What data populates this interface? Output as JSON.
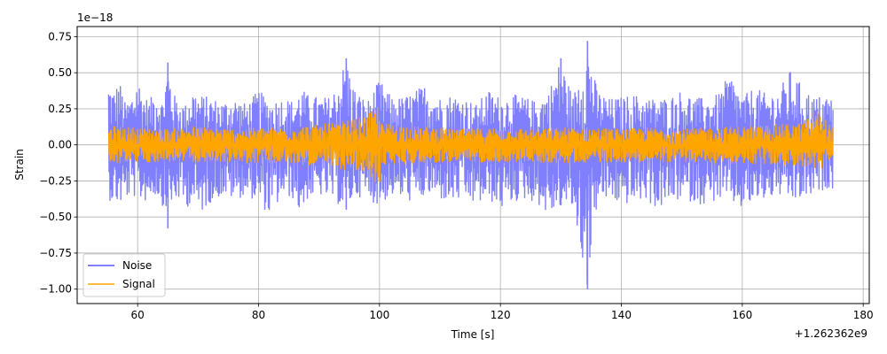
{
  "chart_data": {
    "type": "line",
    "xlabel": "Time [s]",
    "ylabel": "Strain",
    "y_scale_label": "1e−18",
    "x_offset_label": "+1.262362e9",
    "xlim": [
      50,
      181
    ],
    "ylim": [
      -1.1,
      0.82
    ],
    "x_ticks": [
      60,
      80,
      100,
      120,
      140,
      160,
      180
    ],
    "x_tick_labels": [
      "60",
      "80",
      "100",
      "120",
      "140",
      "160",
      "180"
    ],
    "y_ticks": [
      -1.0,
      -0.75,
      -0.5,
      -0.25,
      0.0,
      0.25,
      0.5,
      0.75
    ],
    "y_tick_labels": [
      "−1.00",
      "−0.75",
      "−0.50",
      "−0.25",
      "0.00",
      "0.25",
      "0.50",
      "0.75"
    ],
    "grid": true,
    "legend_position": "lower-left",
    "series": [
      {
        "name": "Noise",
        "color": "#8080ff",
        "x": [
          55.2,
          56.0,
          57.0,
          58.0,
          59.0,
          60.0,
          61.0,
          62.0,
          63.0,
          64.0,
          65.0,
          66.0,
          67.0,
          68.0,
          69.0,
          70.0,
          72.0,
          74.0,
          76.0,
          78.0,
          80.0,
          82.0,
          84.0,
          86.0,
          87.0,
          88.0,
          90.0,
          92.0,
          94.5,
          96.0,
          98.0,
          100.0,
          102.0,
          104.0,
          106.0,
          108.0,
          110.0,
          112.0,
          114.0,
          116.0,
          118.0,
          120.0,
          122.0,
          124.0,
          126.0,
          128.0,
          130.0,
          132.0,
          134.4,
          136.0,
          138.0,
          140.0,
          142.0,
          144.0,
          146.0,
          148.0,
          150.0,
          152.0,
          154.0,
          156.0,
          158.0,
          160.0,
          162.0,
          164.0,
          166.0,
          168.0,
          170.0,
          172.0,
          174.0,
          175.0
        ],
        "upper": [
          0.45,
          0.38,
          0.45,
          0.28,
          0.35,
          0.48,
          0.35,
          0.3,
          0.42,
          0.3,
          0.57,
          0.35,
          0.3,
          0.28,
          0.4,
          0.35,
          0.33,
          0.3,
          0.33,
          0.28,
          0.38,
          0.3,
          0.33,
          0.3,
          0.4,
          0.35,
          0.33,
          0.33,
          0.6,
          0.38,
          0.3,
          0.45,
          0.33,
          0.33,
          0.38,
          0.43,
          0.33,
          0.35,
          0.33,
          0.28,
          0.38,
          0.33,
          0.35,
          0.33,
          0.3,
          0.38,
          0.6,
          0.33,
          0.72,
          0.38,
          0.32,
          0.33,
          0.35,
          0.33,
          0.32,
          0.33,
          0.38,
          0.33,
          0.32,
          0.35,
          0.5,
          0.33,
          0.4,
          0.35,
          0.38,
          0.52,
          0.4,
          0.33,
          0.35,
          0.32
        ],
        "lower": [
          -0.38,
          -0.4,
          -0.42,
          -0.38,
          -0.35,
          -0.38,
          -0.4,
          -0.37,
          -0.35,
          -0.4,
          -0.58,
          -0.4,
          -0.38,
          -0.45,
          -0.38,
          -0.5,
          -0.4,
          -0.35,
          -0.38,
          -0.35,
          -0.4,
          -0.5,
          -0.35,
          -0.38,
          -0.5,
          -0.38,
          -0.35,
          -0.38,
          -0.45,
          -0.35,
          -0.38,
          -0.42,
          -0.35,
          -0.38,
          -0.4,
          -0.35,
          -0.38,
          -0.4,
          -0.38,
          -0.42,
          -0.38,
          -0.45,
          -0.4,
          -0.38,
          -0.4,
          -0.5,
          -0.42,
          -0.45,
          -1.0,
          -0.4,
          -0.38,
          -0.42,
          -0.4,
          -0.38,
          -0.45,
          -0.4,
          -0.38,
          -0.4,
          -0.42,
          -0.38,
          -0.4,
          -0.45,
          -0.4,
          -0.38,
          -0.35,
          -0.4,
          -0.38,
          -0.35,
          -0.3,
          -0.3
        ]
      },
      {
        "name": "Signal",
        "color": "#ffa500",
        "x": [
          55.2,
          60.0,
          65.0,
          70.0,
          75.0,
          80.0,
          85.0,
          90.0,
          95.0,
          98.0,
          100.0,
          100.3,
          105.0,
          110.0,
          115.0,
          120.0,
          125.0,
          130.0,
          135.0,
          140.0,
          145.0,
          150.0,
          155.0,
          160.0,
          165.0,
          170.0,
          172.5,
          175.0
        ],
        "upper": [
          0.13,
          0.12,
          0.11,
          0.13,
          0.11,
          0.12,
          0.12,
          0.14,
          0.17,
          0.2,
          0.3,
          0.15,
          0.13,
          0.12,
          0.11,
          0.12,
          0.11,
          0.12,
          0.12,
          0.11,
          0.12,
          0.11,
          0.12,
          0.13,
          0.14,
          0.15,
          0.24,
          0.12
        ],
        "lower": [
          -0.13,
          -0.12,
          -0.12,
          -0.12,
          -0.12,
          -0.13,
          -0.13,
          -0.15,
          -0.18,
          -0.2,
          -0.3,
          -0.14,
          -0.13,
          -0.12,
          -0.12,
          -0.12,
          -0.12,
          -0.13,
          -0.12,
          -0.12,
          -0.12,
          -0.12,
          -0.13,
          -0.13,
          -0.14,
          -0.15,
          -0.18,
          -0.12
        ]
      }
    ]
  }
}
